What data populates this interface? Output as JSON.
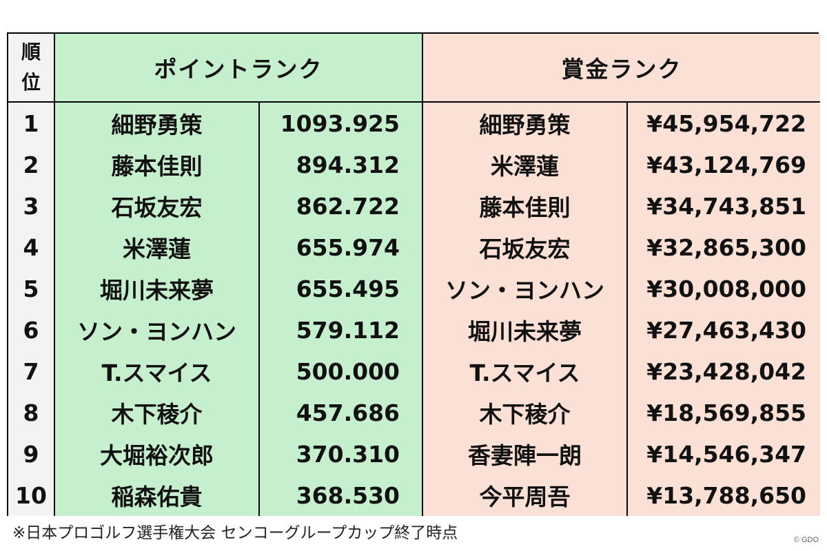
{
  "header": {
    "rank_label_line1": "順",
    "rank_label_line2": "位",
    "point_rank": "ポイントランク",
    "money_rank": "賞金ランク"
  },
  "rows": [
    {
      "rank": "1",
      "point_name": "細野勇策",
      "points": "1093.925",
      "money_name": "細野勇策",
      "money": "¥45,954,722"
    },
    {
      "rank": "2",
      "point_name": "藤本佳則",
      "points": "894.312",
      "money_name": "米澤蓮",
      "money": "¥43,124,769"
    },
    {
      "rank": "3",
      "point_name": "石坂友宏",
      "points": "862.722",
      "money_name": "藤本佳則",
      "money": "¥34,743,851"
    },
    {
      "rank": "4",
      "point_name": "米澤蓮",
      "points": "655.974",
      "money_name": "石坂友宏",
      "money": "¥32,865,300"
    },
    {
      "rank": "5",
      "point_name": "堀川未来夢",
      "points": "655.495",
      "money_name": "ソン・ヨンハン",
      "money": "¥30,008,000"
    },
    {
      "rank": "6",
      "point_name": "ソン・ヨンハン",
      "points": "579.112",
      "money_name": "堀川未来夢",
      "money": "¥27,463,430"
    },
    {
      "rank": "7",
      "point_name": "T.スマイス",
      "points": "500.000",
      "money_name": "T.スマイス",
      "money": "¥23,428,042"
    },
    {
      "rank": "8",
      "point_name": "木下稜介",
      "points": "457.686",
      "money_name": "木下稜介",
      "money": "¥18,569,855"
    },
    {
      "rank": "9",
      "point_name": "大堀裕次郎",
      "points": "370.310",
      "money_name": "香妻陣一朗",
      "money": "¥14,546,347"
    },
    {
      "rank": "10",
      "point_name": "稲森佑貴",
      "points": "368.530",
      "money_name": "今平周吾",
      "money": "¥13,788,650"
    }
  ],
  "footnote": "※日本プロゴルフ選手権大会 センコーグループカップ終了時点",
  "copyright": "© GDO",
  "colors": {
    "point_bg": "#c6efce",
    "money_bg": "#fbe0d5",
    "rank_bg": "#f3f3f3"
  }
}
